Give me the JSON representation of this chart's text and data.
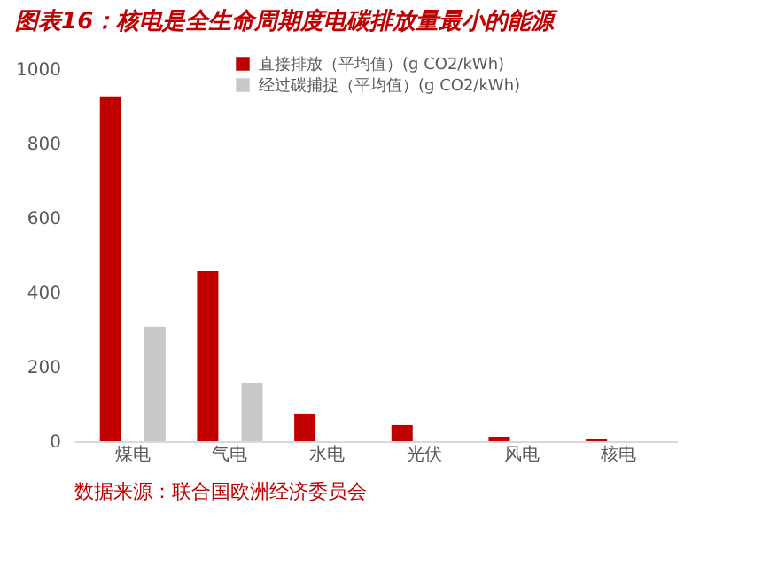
{
  "chart_data": {
    "type": "bar",
    "title": "图表16：核电是全生命周期度电碳排放量最小的能源",
    "categories": [
      "煤电",
      "气电",
      "水电",
      "光伏",
      "风电",
      "核电"
    ],
    "series": [
      {
        "name": "直接排放（平均值）(g CO2/kWh)",
        "color": "#c00000",
        "values": [
          927,
          457,
          74,
          43,
          12,
          5
        ]
      },
      {
        "name": "经过碳捕捉（平均值）(g CO2/kWh)",
        "color": "#c9c9c9",
        "values": [
          308,
          157,
          null,
          null,
          null,
          null
        ]
      }
    ],
    "ylim": [
      0,
      1000
    ],
    "yticks": [
      0,
      200,
      400,
      600,
      800,
      1000
    ],
    "grid": false,
    "legend": "top",
    "annotations": [
      "数据来源：联合国欧洲经济委员会"
    ]
  }
}
